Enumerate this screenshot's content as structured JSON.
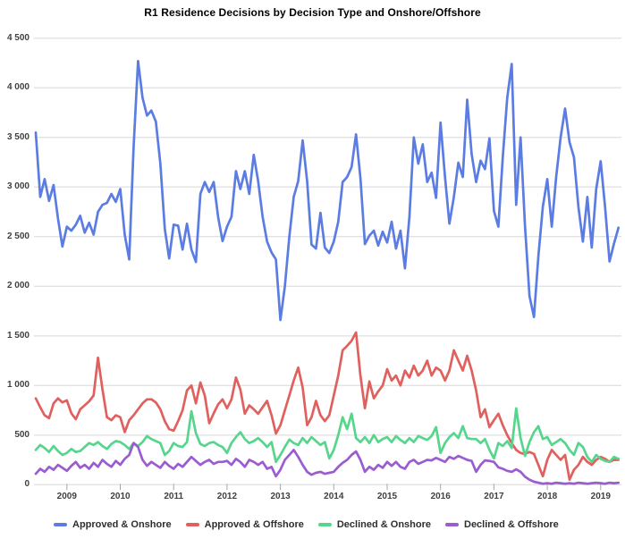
{
  "title": "R1 Residence Decisions by Decision Type and Onshore/Offshore",
  "chart_data": {
    "type": "line",
    "x_unit": "month",
    "x_start": "2008-06",
    "x_end": "2019-05",
    "x_tick_labels": [
      "2009",
      "2010",
      "2011",
      "2012",
      "2013",
      "2014",
      "2015",
      "2016",
      "2017",
      "2018",
      "2019"
    ],
    "y_ticks": [
      0,
      500,
      1000,
      1500,
      2000,
      2500,
      3000,
      3500,
      4000,
      4500
    ],
    "y_tick_labels": [
      "0",
      "500",
      "1 000",
      "1 500",
      "2 000",
      "2 500",
      "3 000",
      "3 500",
      "4 000",
      "4 500"
    ],
    "ylim": [
      0,
      4500
    ],
    "grid": true,
    "legend_position": "bottom",
    "background_color": "#ffffff",
    "gridline_color": "#e2e2e2",
    "tick_color": "#a6a6a6",
    "axis_text_color": "#3f3f3f",
    "series": [
      {
        "name": "Approved & Onshore",
        "color": "#5b7ce2",
        "values": [
          3550,
          2900,
          3080,
          2860,
          3020,
          2680,
          2400,
          2600,
          2560,
          2620,
          2710,
          2540,
          2640,
          2520,
          2750,
          2820,
          2840,
          2930,
          2850,
          2980,
          2520,
          2270,
          3400,
          4270,
          3900,
          3720,
          3770,
          3660,
          3240,
          2580,
          2280,
          2620,
          2610,
          2370,
          2630,
          2370,
          2245,
          2930,
          3050,
          2950,
          3050,
          2695,
          2455,
          2600,
          2700,
          3160,
          2980,
          3160,
          2930,
          3325,
          3060,
          2700,
          2450,
          2340,
          2270,
          1660,
          2000,
          2500,
          2900,
          3060,
          3470,
          3060,
          2420,
          2380,
          2740,
          2390,
          2335,
          2450,
          2650,
          3050,
          3100,
          3200,
          3530,
          3090,
          2425,
          2510,
          2560,
          2410,
          2550,
          2440,
          2650,
          2380,
          2560,
          2180,
          2700,
          3500,
          3235,
          3430,
          3050,
          3145,
          2890,
          3650,
          3100,
          2630,
          2900,
          3245,
          3100,
          3880,
          3330,
          3050,
          3265,
          3180,
          3490,
          2760,
          2600,
          3300,
          3900,
          4240,
          2820,
          3500,
          2600,
          1900,
          1690,
          2300,
          2800,
          3080,
          2600,
          3100,
          3500,
          3790,
          3450,
          3300,
          2800,
          2450,
          2900,
          2390,
          2980,
          3260,
          2800,
          2250,
          2430,
          2590
        ]
      },
      {
        "name": "Approved & Offshore",
        "color": "#e0605e",
        "values": [
          870,
          780,
          700,
          670,
          820,
          870,
          830,
          850,
          720,
          660,
          760,
          800,
          840,
          900,
          1280,
          960,
          680,
          650,
          700,
          680,
          530,
          650,
          700,
          760,
          820,
          860,
          860,
          830,
          760,
          640,
          560,
          545,
          640,
          750,
          950,
          1000,
          820,
          1030,
          900,
          620,
          720,
          810,
          860,
          770,
          860,
          1080,
          960,
          715,
          800,
          760,
          715,
          780,
          845,
          700,
          515,
          600,
          750,
          900,
          1050,
          1180,
          980,
          600,
          680,
          845,
          700,
          640,
          700,
          900,
          1100,
          1355,
          1400,
          1450,
          1535,
          1100,
          770,
          1040,
          870,
          940,
          1000,
          1165,
          1050,
          1100,
          1000,
          1150,
          1080,
          1200,
          1100,
          1150,
          1250,
          1100,
          1180,
          1150,
          1050,
          1150,
          1355,
          1250,
          1150,
          1300,
          1150,
          950,
          680,
          760,
          580,
          650,
          715,
          600,
          500,
          420,
          350,
          320,
          310,
          330,
          310,
          200,
          85,
          250,
          350,
          300,
          250,
          300,
          50,
          150,
          200,
          280,
          230,
          200,
          250,
          280,
          260,
          230,
          250,
          250
        ]
      },
      {
        "name": "Declined & Onshore",
        "color": "#55d68c",
        "values": [
          350,
          400,
          370,
          330,
          390,
          340,
          300,
          320,
          360,
          330,
          340,
          380,
          420,
          400,
          430,
          390,
          360,
          410,
          440,
          430,
          400,
          360,
          420,
          390,
          430,
          490,
          460,
          440,
          420,
          300,
          340,
          420,
          390,
          380,
          430,
          740,
          520,
          410,
          390,
          420,
          430,
          400,
          380,
          320,
          420,
          480,
          530,
          460,
          420,
          440,
          470,
          430,
          380,
          430,
          230,
          300,
          380,
          455,
          420,
          400,
          470,
          420,
          480,
          440,
          400,
          430,
          265,
          350,
          500,
          680,
          560,
          715,
          470,
          430,
          480,
          420,
          500,
          430,
          460,
          480,
          430,
          490,
          450,
          420,
          470,
          430,
          490,
          470,
          450,
          490,
          580,
          320,
          420,
          480,
          520,
          470,
          590,
          470,
          460,
          460,
          420,
          460,
          350,
          265,
          420,
          390,
          440,
          370,
          770,
          470,
          290,
          430,
          530,
          590,
          460,
          480,
          400,
          430,
          460,
          420,
          350,
          300,
          420,
          380,
          280,
          230,
          300,
          260,
          240,
          230,
          280,
          260
        ]
      },
      {
        "name": "Declined & Offshore",
        "color": "#9a5cd0",
        "values": [
          110,
          160,
          130,
          180,
          150,
          200,
          170,
          140,
          190,
          230,
          170,
          200,
          160,
          220,
          180,
          250,
          210,
          180,
          240,
          200,
          260,
          300,
          420,
          380,
          250,
          190,
          230,
          200,
          170,
          230,
          190,
          160,
          210,
          180,
          230,
          280,
          240,
          200,
          230,
          250,
          210,
          230,
          230,
          240,
          200,
          260,
          230,
          180,
          250,
          230,
          200,
          230,
          160,
          180,
          85,
          150,
          250,
          300,
          350,
          280,
          200,
          130,
          100,
          120,
          130,
          110,
          120,
          130,
          180,
          220,
          250,
          300,
          335,
          250,
          130,
          180,
          150,
          200,
          170,
          230,
          190,
          230,
          180,
          160,
          230,
          250,
          210,
          230,
          250,
          245,
          270,
          250,
          230,
          280,
          260,
          290,
          270,
          250,
          240,
          130,
          200,
          245,
          240,
          230,
          175,
          160,
          140,
          130,
          155,
          130,
          80,
          50,
          30,
          20,
          10,
          15,
          10,
          20,
          15,
          10,
          15,
          10,
          20,
          15,
          10,
          15,
          20,
          15,
          10,
          20,
          15,
          20
        ]
      }
    ]
  }
}
